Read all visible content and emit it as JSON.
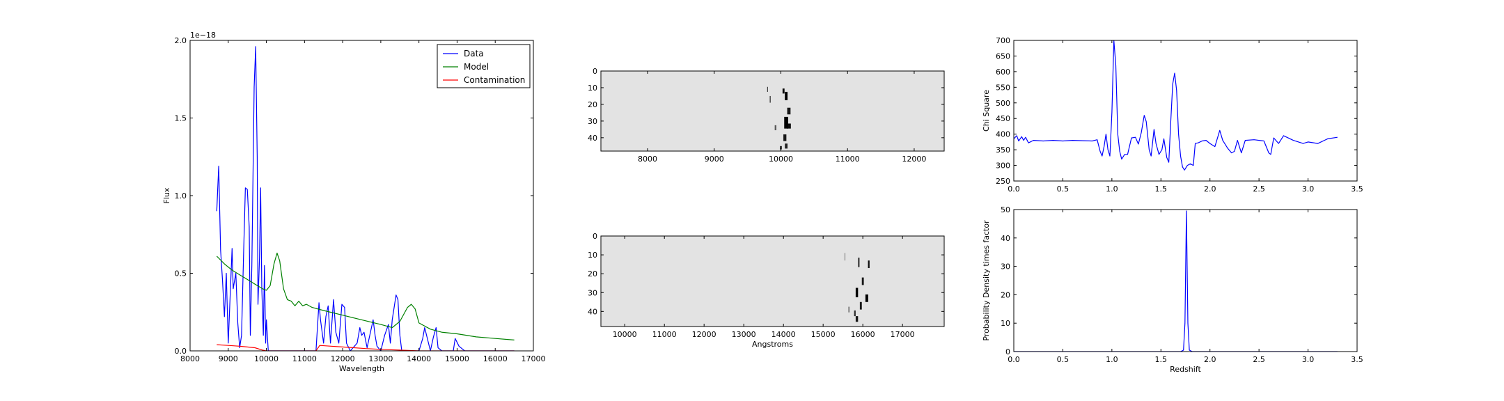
{
  "chart_data": [
    {
      "id": "spectrum",
      "type": "line",
      "xlabel": "Wavelength",
      "ylabel": "Flux",
      "offset_label": "1e−18",
      "xlim": [
        8000,
        17000
      ],
      "ylim": [
        0.0,
        2.0
      ],
      "xticks": [
        8000,
        9000,
        10000,
        11000,
        12000,
        13000,
        14000,
        15000,
        16000,
        17000
      ],
      "yticks": [
        0.0,
        0.5,
        1.0,
        1.5,
        2.0
      ],
      "legend": "top-right",
      "series": [
        {
          "name": "Data",
          "color": "#0000ff",
          "points": [
            [
              8700,
              0.9
            ],
            [
              8750,
              1.19
            ],
            [
              8800,
              0.65
            ],
            [
              8850,
              0.45
            ],
            [
              8900,
              0.22
            ],
            [
              8950,
              0.5
            ],
            [
              9000,
              0.05
            ],
            [
              9050,
              0.35
            ],
            [
              9100,
              0.66
            ],
            [
              9130,
              0.4
            ],
            [
              9200,
              0.5
            ],
            [
              9250,
              0.18
            ],
            [
              9300,
              0.02
            ],
            [
              9350,
              0.1
            ],
            [
              9400,
              0.6
            ],
            [
              9450,
              1.05
            ],
            [
              9500,
              1.04
            ],
            [
              9550,
              0.8
            ],
            [
              9580,
              0.1
            ],
            [
              9620,
              0.55
            ],
            [
              9680,
              1.7
            ],
            [
              9720,
              1.96
            ],
            [
              9760,
              1.25
            ],
            [
              9780,
              0.3
            ],
            [
              9820,
              0.6
            ],
            [
              9850,
              1.05
            ],
            [
              9880,
              0.4
            ],
            [
              9920,
              0.1
            ],
            [
              9950,
              0.55
            ],
            [
              9980,
              0.05
            ],
            [
              10000,
              0.2
            ],
            [
              10050,
              0.0
            ],
            [
              11000,
              0.0
            ],
            [
              11300,
              0.0
            ],
            [
              11380,
              0.31
            ],
            [
              11420,
              0.2
            ],
            [
              11500,
              0.05
            ],
            [
              11560,
              0.22
            ],
            [
              11620,
              0.29
            ],
            [
              11680,
              0.05
            ],
            [
              11760,
              0.33
            ],
            [
              11820,
              0.12
            ],
            [
              11900,
              0.05
            ],
            [
              11980,
              0.3
            ],
            [
              12050,
              0.28
            ],
            [
              12100,
              0.05
            ],
            [
              12200,
              0.0
            ],
            [
              12380,
              0.05
            ],
            [
              12450,
              0.15
            ],
            [
              12500,
              0.1
            ],
            [
              12560,
              0.12
            ],
            [
              12640,
              0.02
            ],
            [
              12800,
              0.2
            ],
            [
              12850,
              0.1
            ],
            [
              12900,
              0.03
            ],
            [
              13000,
              0.0
            ],
            [
              13100,
              0.1
            ],
            [
              13200,
              0.17
            ],
            [
              13250,
              0.05
            ],
            [
              13300,
              0.2
            ],
            [
              13400,
              0.36
            ],
            [
              13450,
              0.33
            ],
            [
              13500,
              0.1
            ],
            [
              13550,
              0.0
            ],
            [
              14000,
              0.0
            ],
            [
              14100,
              0.08
            ],
            [
              14150,
              0.15
            ],
            [
              14250,
              0.05
            ],
            [
              14300,
              0.0
            ],
            [
              14380,
              0.09
            ],
            [
              14450,
              0.15
            ],
            [
              14500,
              0.02
            ],
            [
              14600,
              0.0
            ],
            [
              14900,
              0.0
            ],
            [
              14950,
              0.08
            ],
            [
              15050,
              0.03
            ],
            [
              15200,
              0.0
            ],
            [
              16500,
              0.0
            ]
          ]
        },
        {
          "name": "Model",
          "color": "#008000",
          "points": [
            [
              8700,
              0.61
            ],
            [
              8900,
              0.56
            ],
            [
              9100,
              0.52
            ],
            [
              9300,
              0.49
            ],
            [
              9500,
              0.46
            ],
            [
              9700,
              0.43
            ],
            [
              9900,
              0.4
            ],
            [
              10000,
              0.39
            ],
            [
              10100,
              0.42
            ],
            [
              10200,
              0.56
            ],
            [
              10280,
              0.63
            ],
            [
              10350,
              0.58
            ],
            [
              10450,
              0.4
            ],
            [
              10550,
              0.33
            ],
            [
              10650,
              0.32
            ],
            [
              10750,
              0.29
            ],
            [
              10850,
              0.32
            ],
            [
              10950,
              0.29
            ],
            [
              11050,
              0.3
            ],
            [
              11200,
              0.28
            ],
            [
              11500,
              0.26
            ],
            [
              12000,
              0.23
            ],
            [
              12500,
              0.2
            ],
            [
              13000,
              0.17
            ],
            [
              13300,
              0.15
            ],
            [
              13500,
              0.19
            ],
            [
              13700,
              0.28
            ],
            [
              13800,
              0.3
            ],
            [
              13900,
              0.27
            ],
            [
              14000,
              0.18
            ],
            [
              14300,
              0.14
            ],
            [
              14600,
              0.12
            ],
            [
              15000,
              0.11
            ],
            [
              15500,
              0.09
            ],
            [
              16000,
              0.08
            ],
            [
              16500,
              0.07
            ]
          ]
        },
        {
          "name": "Contamination",
          "color": "#ff0000",
          "points": [
            [
              8700,
              0.04
            ],
            [
              9000,
              0.035
            ],
            [
              9300,
              0.03
            ],
            [
              9500,
              0.025
            ],
            [
              9700,
              0.02
            ],
            [
              9900,
              0.005
            ],
            [
              10000,
              0.0
            ],
            [
              11300,
              0.0
            ],
            [
              11400,
              0.035
            ],
            [
              11700,
              0.03
            ],
            [
              12000,
              0.025
            ],
            [
              12300,
              0.02
            ],
            [
              12600,
              0.015
            ],
            [
              13000,
              0.01
            ],
            [
              13500,
              0.005
            ],
            [
              14000,
              0.0
            ],
            [
              16500,
              0.0
            ]
          ]
        }
      ]
    },
    {
      "id": "image-top",
      "type": "heatmap",
      "xlim": [
        7300,
        12450
      ],
      "ylim": [
        48,
        0
      ],
      "xticks": [
        8000,
        9000,
        10000,
        11000,
        12000
      ],
      "yticks": [
        0,
        10,
        20,
        30,
        40
      ],
      "background": "#e3e3e3",
      "features": [
        [
          9800,
          11,
          10,
          3,
          0.9
        ],
        [
          9840,
          17,
          15,
          4,
          0.7
        ],
        [
          10040,
          12,
          30,
          3,
          0.95
        ],
        [
          10080,
          15,
          40,
          5,
          1.0
        ],
        [
          10120,
          24,
          50,
          4,
          0.9
        ],
        [
          10080,
          31,
          60,
          7,
          1.0
        ],
        [
          10120,
          33,
          60,
          3,
          0.95
        ],
        [
          10060,
          40,
          45,
          4,
          0.9
        ],
        [
          10080,
          45,
          40,
          3,
          0.85
        ],
        [
          9920,
          34,
          25,
          3,
          0.6
        ],
        [
          10000,
          46,
          30,
          2,
          0.8
        ]
      ]
    },
    {
      "id": "image-bottom",
      "type": "heatmap",
      "xlabel": "Angstroms",
      "xlim": [
        9400,
        18050
      ],
      "ylim": [
        48,
        0
      ],
      "xticks": [
        10000,
        11000,
        12000,
        13000,
        14000,
        15000,
        16000,
        17000
      ],
      "yticks": [
        0,
        10,
        20,
        30,
        40
      ],
      "background": "#e3e3e3",
      "features": [
        [
          15550,
          11,
          10,
          4,
          0.9
        ],
        [
          15900,
          14,
          30,
          5,
          1.0
        ],
        [
          16150,
          15,
          40,
          4,
          0.95
        ],
        [
          16000,
          24,
          50,
          4,
          0.9
        ],
        [
          15850,
          30,
          60,
          5,
          1.0
        ],
        [
          16100,
          33,
          70,
          4,
          1.0
        ],
        [
          15950,
          37,
          50,
          4,
          0.9
        ],
        [
          15800,
          41,
          40,
          3,
          0.8
        ],
        [
          15850,
          44,
          60,
          3,
          0.9
        ],
        [
          15650,
          39,
          25,
          3,
          0.6
        ]
      ]
    },
    {
      "id": "chi-square",
      "type": "line",
      "ylabel": "Chi Square",
      "xlim": [
        0.0,
        3.5
      ],
      "ylim": [
        250,
        700
      ],
      "xticks": [
        0.0,
        0.5,
        1.0,
        1.5,
        2.0,
        2.5,
        3.0,
        3.5
      ],
      "yticks": [
        250,
        300,
        350,
        400,
        450,
        500,
        550,
        600,
        650,
        700
      ],
      "series": [
        {
          "color": "#0000ff",
          "points": [
            [
              0.0,
              385
            ],
            [
              0.03,
              395
            ],
            [
              0.05,
              378
            ],
            [
              0.08,
              392
            ],
            [
              0.1,
              380
            ],
            [
              0.12,
              390
            ],
            [
              0.15,
              372
            ],
            [
              0.2,
              380
            ],
            [
              0.3,
              378
            ],
            [
              0.4,
              380
            ],
            [
              0.5,
              378
            ],
            [
              0.6,
              380
            ],
            [
              0.7,
              379
            ],
            [
              0.8,
              378
            ],
            [
              0.85,
              382
            ],
            [
              0.88,
              345
            ],
            [
              0.9,
              330
            ],
            [
              0.92,
              360
            ],
            [
              0.94,
              400
            ],
            [
              0.96,
              350
            ],
            [
              0.98,
              330
            ],
            [
              1.0,
              470
            ],
            [
              1.02,
              700
            ],
            [
              1.04,
              620
            ],
            [
              1.06,
              400
            ],
            [
              1.08,
              345
            ],
            [
              1.1,
              320
            ],
            [
              1.13,
              335
            ],
            [
              1.16,
              335
            ],
            [
              1.2,
              388
            ],
            [
              1.24,
              390
            ],
            [
              1.27,
              368
            ],
            [
              1.3,
              405
            ],
            [
              1.33,
              460
            ],
            [
              1.35,
              440
            ],
            [
              1.38,
              350
            ],
            [
              1.4,
              330
            ],
            [
              1.43,
              415
            ],
            [
              1.45,
              370
            ],
            [
              1.48,
              335
            ],
            [
              1.51,
              350
            ],
            [
              1.53,
              385
            ],
            [
              1.56,
              325
            ],
            [
              1.58,
              310
            ],
            [
              1.6,
              440
            ],
            [
              1.62,
              560
            ],
            [
              1.64,
              595
            ],
            [
              1.66,
              540
            ],
            [
              1.68,
              400
            ],
            [
              1.7,
              330
            ],
            [
              1.72,
              295
            ],
            [
              1.74,
              285
            ],
            [
              1.77,
              300
            ],
            [
              1.8,
              305
            ],
            [
              1.83,
              300
            ],
            [
              1.85,
              370
            ],
            [
              1.88,
              372
            ],
            [
              1.92,
              378
            ],
            [
              1.96,
              380
            ],
            [
              2.0,
              370
            ],
            [
              2.05,
              360
            ],
            [
              2.1,
              412
            ],
            [
              2.13,
              380
            ],
            [
              2.18,
              355
            ],
            [
              2.22,
              340
            ],
            [
              2.25,
              345
            ],
            [
              2.28,
              380
            ],
            [
              2.32,
              340
            ],
            [
              2.36,
              380
            ],
            [
              2.45,
              382
            ],
            [
              2.55,
              378
            ],
            [
              2.6,
              340
            ],
            [
              2.62,
              335
            ],
            [
              2.65,
              388
            ],
            [
              2.7,
              370
            ],
            [
              2.75,
              395
            ],
            [
              2.85,
              380
            ],
            [
              2.95,
              370
            ],
            [
              3.0,
              375
            ],
            [
              3.1,
              370
            ],
            [
              3.2,
              385
            ],
            [
              3.3,
              390
            ]
          ]
        }
      ]
    },
    {
      "id": "probability",
      "type": "line",
      "xlabel": "Redshift",
      "ylabel": "Probability Density times factor",
      "xlim": [
        0.0,
        3.5
      ],
      "ylim": [
        0,
        50
      ],
      "xticks": [
        0.0,
        0.5,
        1.0,
        1.5,
        2.0,
        2.5,
        3.0,
        3.5
      ],
      "yticks": [
        0,
        10,
        20,
        30,
        40,
        50
      ],
      "series": [
        {
          "color": "#0000ff",
          "points": [
            [
              0.0,
              0
            ],
            [
              1.7,
              0
            ],
            [
              1.73,
              0.5
            ],
            [
              1.745,
              10
            ],
            [
              1.76,
              49.5
            ],
            [
              1.775,
              10
            ],
            [
              1.79,
              0.5
            ],
            [
              1.82,
              0
            ],
            [
              3.3,
              0
            ]
          ]
        }
      ]
    }
  ]
}
